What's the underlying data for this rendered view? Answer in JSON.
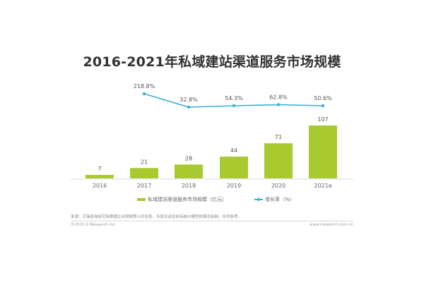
{
  "title": "2016-2021年私域建站渠道服务市场规模",
  "chart_data": {
    "type": "bar+line",
    "title": "2016-2021年私域建站渠道服务市场规模",
    "categories": [
      "2016",
      "2017",
      "2018",
      "2019",
      "2020",
      "2021e"
    ],
    "series": [
      {
        "name": "私域建站渠道服务市场规模（亿元）",
        "type": "bar",
        "color": "#a8c930",
        "values": [
          7,
          21,
          28,
          44,
          71,
          107
        ],
        "labels": [
          "7",
          "21",
          "28",
          "44",
          "71",
          "107"
        ]
      },
      {
        "name": "增长率（%）",
        "type": "line",
        "color": "#3ab0cf",
        "values": [
          null,
          218.8,
          32.8,
          54.3,
          62.8,
          50.6
        ],
        "labels": [
          "",
          "218.8%",
          "32.8%",
          "54.3%",
          "62.8%",
          "50.6%"
        ]
      }
    ],
    "xlabel": "",
    "ylabel": "",
    "grid": false,
    "legend_position": "bottom"
  },
  "legend": {
    "bar_label": "私域建站渠道服务市场规模（亿元）",
    "line_label": "增长率（%）"
  },
  "footer": {
    "source": "来源：艾瑞咨询研究院根据企业财报等公开信息、专家访谈及自有统计模型核算及绘制，仅供参考。",
    "copyright": "©2021.9 iResearch Inc.",
    "site": "www.iresearch.com.cn"
  }
}
